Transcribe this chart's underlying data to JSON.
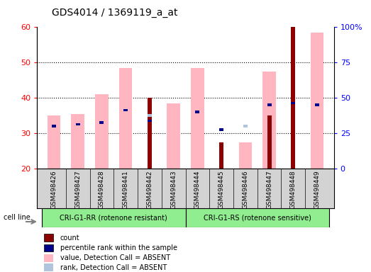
{
  "title": "GDS4014 / 1369119_a_at",
  "samples": [
    "GSM498426",
    "GSM498427",
    "GSM498428",
    "GSM498441",
    "GSM498442",
    "GSM498443",
    "GSM498444",
    "GSM498445",
    "GSM498446",
    "GSM498447",
    "GSM498448",
    "GSM498449"
  ],
  "group1_label": "CRI-G1-RR (rotenone resistant)",
  "group2_label": "CRI-G1-RS (rotenone sensitive)",
  "cell_line_label": "cell line",
  "ylim_left": [
    20,
    60
  ],
  "ylim_right": [
    0,
    100
  ],
  "yticks_left": [
    20,
    30,
    40,
    50,
    60
  ],
  "yticks_right": [
    0,
    25,
    50,
    75,
    100
  ],
  "yticklabels_right": [
    "0",
    "25",
    "50",
    "75",
    "100%"
  ],
  "count_values": [
    null,
    null,
    null,
    null,
    40.0,
    null,
    null,
    27.5,
    null,
    35.0,
    60.0,
    null
  ],
  "rank_values": [
    32.0,
    32.5,
    33.0,
    36.5,
    33.5,
    null,
    36.0,
    31.0,
    32.0,
    38.0,
    38.5,
    38.0
  ],
  "value_absent": [
    35.0,
    35.5,
    41.0,
    48.5,
    null,
    38.5,
    48.5,
    null,
    27.5,
    47.5,
    null,
    58.5
  ],
  "rank_absent": [
    null,
    null,
    null,
    null,
    35.0,
    null,
    null,
    null,
    32.0,
    null,
    null,
    null
  ],
  "count_color": "#8B0000",
  "rank_color": "#00008B",
  "value_absent_color": "#FFB6C1",
  "rank_absent_color": "#B0C4DE",
  "plot_bg": "#D3D3D3",
  "group_bg": "#90EE90",
  "legend_items": [
    {
      "label": "count",
      "color": "#8B0000"
    },
    {
      "label": "percentile rank within the sample",
      "color": "#00008B"
    },
    {
      "label": "value, Detection Call = ABSENT",
      "color": "#FFB6C1"
    },
    {
      "label": "rank, Detection Call = ABSENT",
      "color": "#B0C4DE"
    }
  ]
}
